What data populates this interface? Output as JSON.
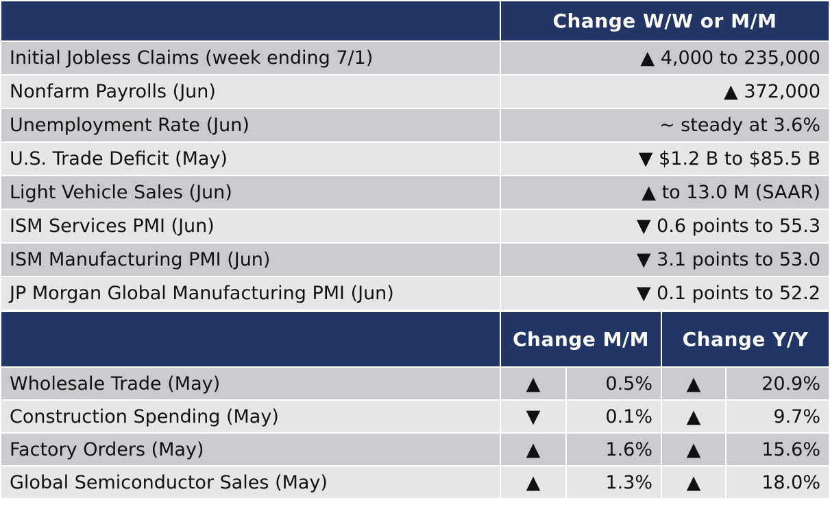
{
  "top_table": {
    "header": "Change W/W or M/M",
    "rows": [
      {
        "label": "Initial Jobless Claims (week ending 7/1)",
        "value": "▲ 4,000 to 235,000"
      },
      {
        "label": "Nonfarm Payrolls (Jun)",
        "value": "▲ 372,000"
      },
      {
        "label": "Unemployment Rate (Jun)",
        "value": "~ steady at 3.6%"
      },
      {
        "label": "U.S. Trade Deficit (May)",
        "value": "▼ $1.2 B to $85.5 B"
      },
      {
        "label": "Light Vehicle Sales (Jun)",
        "value": "▲ to 13.0 M (SAAR)"
      },
      {
        "label": "ISM Services PMI (Jun)",
        "value": "▼ 0.6 points to 55.3"
      },
      {
        "label": "ISM Manufacturing PMI (Jun)",
        "value": "▼ 3.1 points to 53.0"
      },
      {
        "label": "JP Morgan Global Manufacturing PMI (Jun)",
        "value": "▼ 0.1 points to 52.2"
      }
    ]
  },
  "bottom_table": {
    "header_mm": "Change M/M",
    "header_yy": "Change Y/Y",
    "rows": [
      {
        "label": "Wholesale Trade (May)",
        "mm_arrow": "▲",
        "mm_value": "0.5%",
        "yy_arrow": "▲",
        "yy_value": "20.9%"
      },
      {
        "label": "Construction Spending (May)",
        "mm_arrow": "▼",
        "mm_value": "0.1%",
        "yy_arrow": "▲",
        "yy_value": "9.7%"
      },
      {
        "label": "Factory Orders (May)",
        "mm_arrow": "▲",
        "mm_value": "1.6%",
        "yy_arrow": "▲",
        "yy_value": "15.6%"
      },
      {
        "label": "Global Semiconductor Sales (May)",
        "mm_arrow": "▲",
        "mm_value": "1.3%",
        "yy_arrow": "▲",
        "yy_value": "18.0%"
      }
    ]
  },
  "colors": {
    "header_bg": "#233466",
    "row_dark": "#cbcbcf",
    "row_light": "#e6e6e8"
  }
}
